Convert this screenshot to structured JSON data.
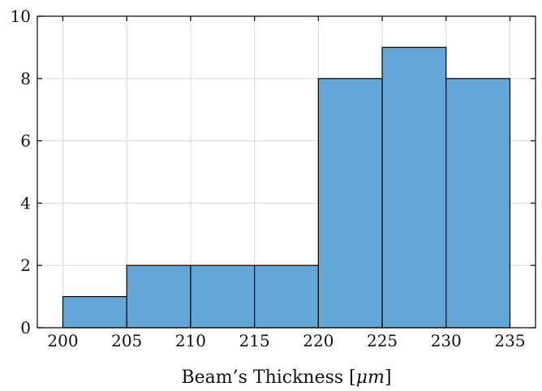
{
  "chart_data": {
    "type": "bar",
    "subtype": "histogram",
    "title": "",
    "xlabel": "Beam’s Thickness [μm]",
    "ylabel": "",
    "bin_edges": [
      200,
      205,
      210,
      215,
      220,
      225,
      230,
      235
    ],
    "values": [
      1,
      2,
      2,
      2,
      8,
      9,
      8
    ],
    "xlim": [
      198,
      237
    ],
    "ylim": [
      0,
      10
    ],
    "x_ticks": [
      200,
      205,
      210,
      215,
      220,
      225,
      230,
      235
    ],
    "y_ticks": [
      0,
      2,
      4,
      6,
      8,
      10
    ],
    "grid": true,
    "bar_color": "#64a7d6",
    "edge_color": "#111111"
  }
}
